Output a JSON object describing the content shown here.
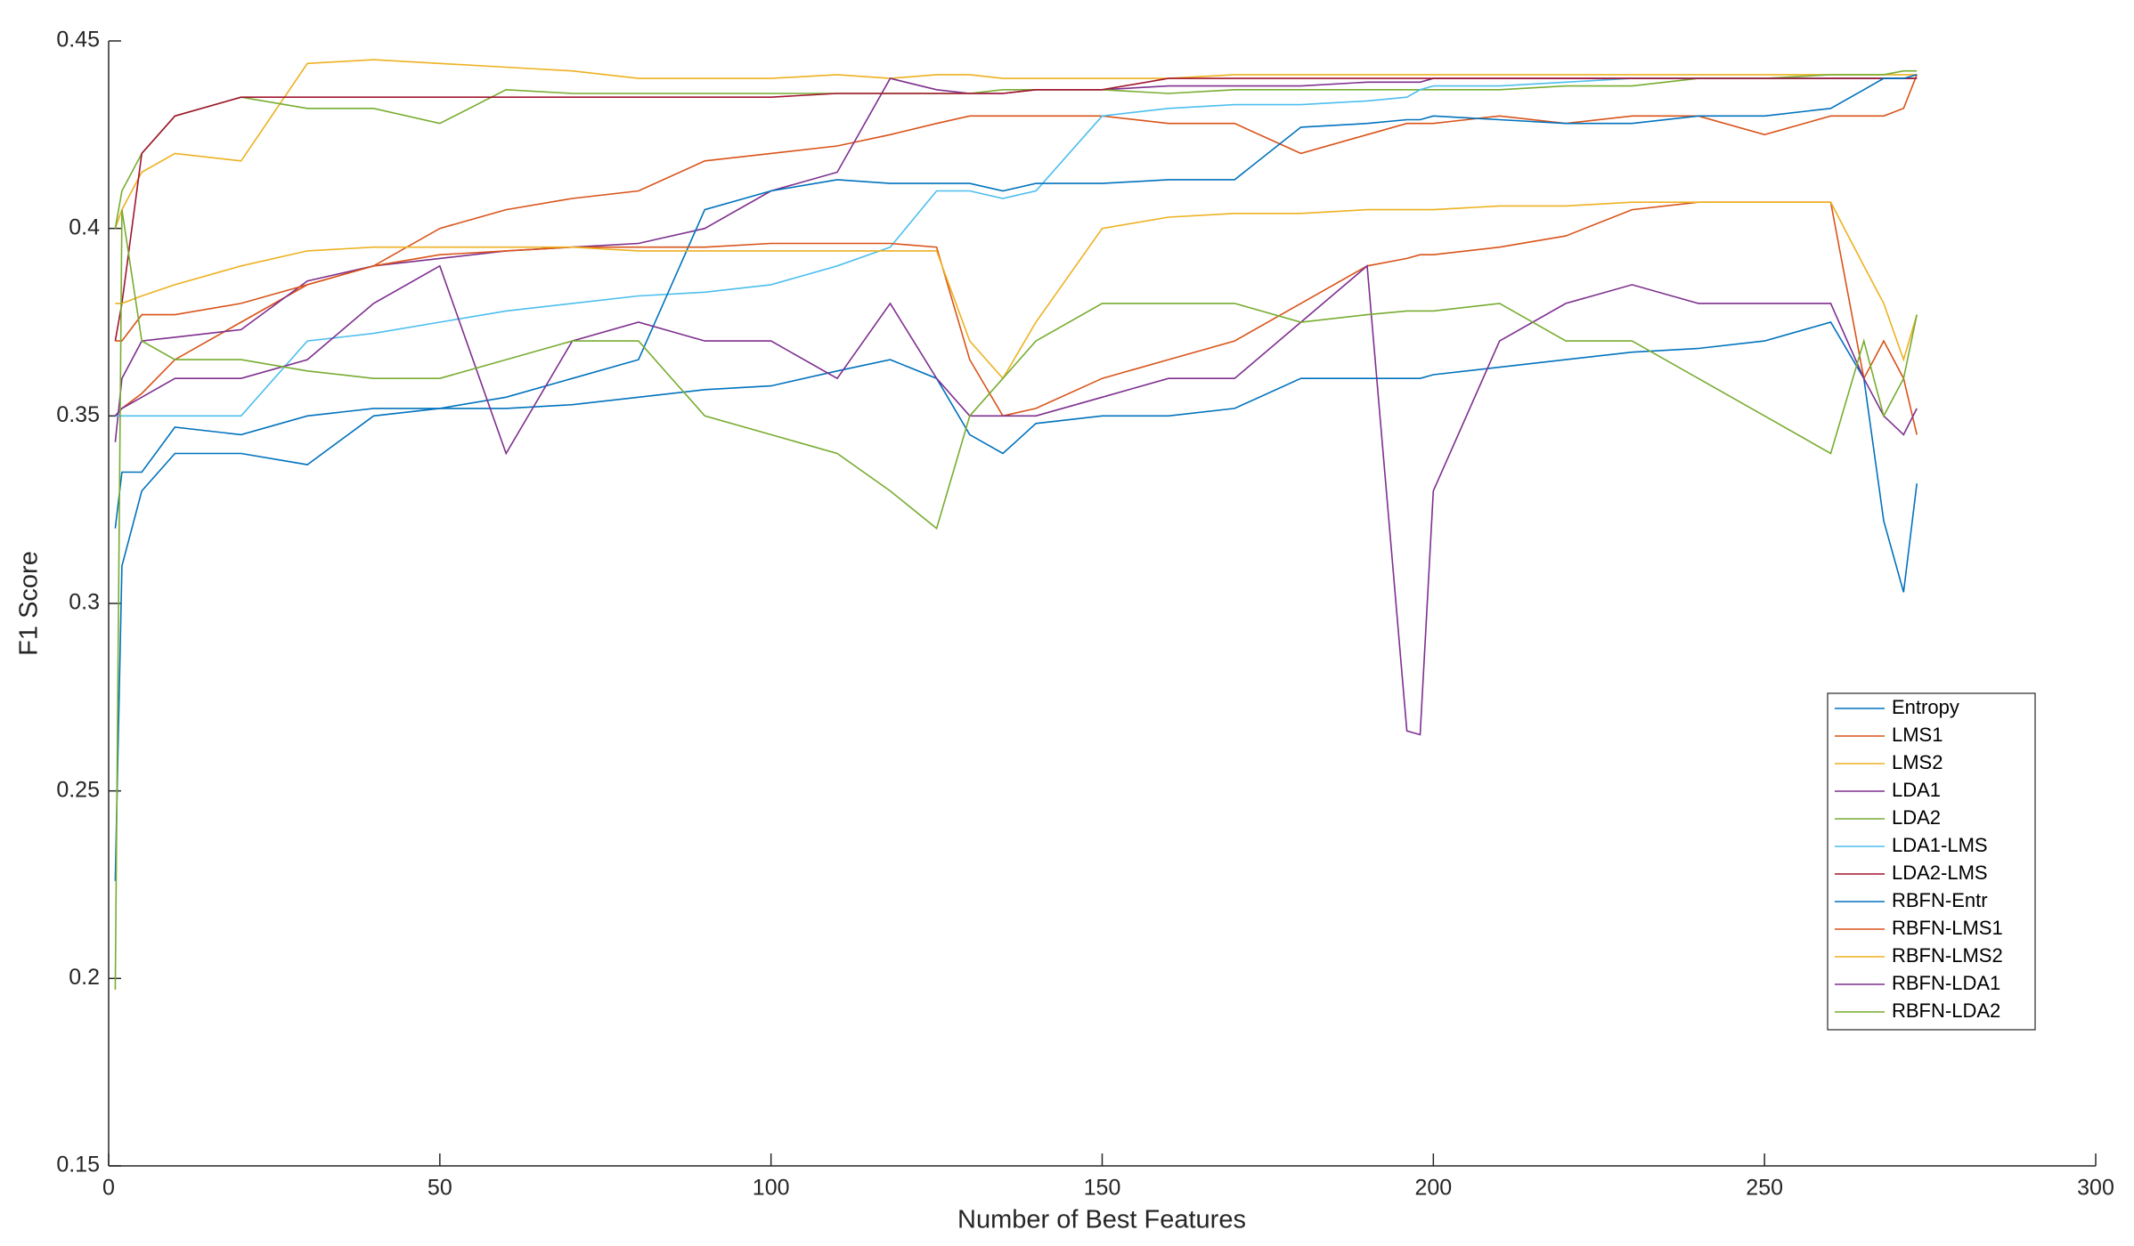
{
  "chart_data": {
    "type": "line",
    "xlabel": "Number of Best Features",
    "ylabel": "F1 Score",
    "xlim": [
      0,
      300
    ],
    "xticks": [
      0,
      50,
      100,
      150,
      200,
      250,
      300
    ],
    "ylim": [
      0.15,
      0.45
    ],
    "yticks": [
      0.15,
      0.2,
      0.25,
      0.3,
      0.35,
      0.4,
      0.45
    ],
    "legend": "right",
    "x": [
      1,
      2,
      5,
      10,
      20,
      30,
      40,
      50,
      60,
      70,
      80,
      90,
      100,
      110,
      118,
      125,
      130,
      135,
      140,
      150,
      160,
      170,
      180,
      190,
      196,
      198,
      200,
      210,
      220,
      230,
      240,
      250,
      260,
      265,
      268,
      271,
      273
    ],
    "series": [
      {
        "name": "Entropy",
        "color": "#0072BD",
        "values": [
          0.226,
          0.31,
          0.33,
          0.34,
          0.34,
          0.337,
          0.35,
          0.352,
          0.352,
          0.353,
          0.355,
          0.357,
          0.358,
          0.362,
          0.365,
          0.36,
          0.345,
          0.34,
          0.348,
          0.35,
          0.35,
          0.352,
          0.36,
          0.36,
          0.36,
          0.36,
          0.361,
          0.363,
          0.365,
          0.367,
          0.368,
          0.37,
          0.375,
          0.36,
          0.322,
          0.303,
          0.332
        ]
      },
      {
        "name": "LMS1",
        "color": "#D95319",
        "values": [
          0.35,
          0.352,
          0.356,
          0.365,
          0.375,
          0.385,
          0.39,
          0.4,
          0.405,
          0.408,
          0.41,
          0.418,
          0.42,
          0.422,
          0.425,
          0.428,
          0.43,
          0.43,
          0.43,
          0.43,
          0.428,
          0.428,
          0.42,
          0.425,
          0.428,
          0.428,
          0.428,
          0.43,
          0.428,
          0.43,
          0.43,
          0.425,
          0.43,
          0.43,
          0.43,
          0.432,
          0.441
        ]
      },
      {
        "name": "LMS2",
        "color": "#EDB120",
        "values": [
          0.4,
          0.405,
          0.415,
          0.42,
          0.418,
          0.444,
          0.445,
          0.444,
          0.443,
          0.442,
          0.44,
          0.44,
          0.44,
          0.441,
          0.44,
          0.441,
          0.441,
          0.44,
          0.44,
          0.44,
          0.44,
          0.441,
          0.441,
          0.441,
          0.441,
          0.441,
          0.441,
          0.441,
          0.441,
          0.441,
          0.441,
          0.441,
          0.441,
          0.441,
          0.441,
          0.441,
          0.441
        ]
      },
      {
        "name": "LDA1",
        "color": "#7E2F8E",
        "values": [
          0.343,
          0.36,
          0.37,
          0.371,
          0.373,
          0.386,
          0.39,
          0.392,
          0.394,
          0.395,
          0.396,
          0.4,
          0.41,
          0.415,
          0.44,
          0.437,
          0.436,
          0.436,
          0.437,
          0.437,
          0.438,
          0.438,
          0.438,
          0.439,
          0.439,
          0.439,
          0.44,
          0.44,
          0.44,
          0.44,
          0.44,
          0.44,
          0.44,
          0.44,
          0.44,
          0.44,
          0.44
        ]
      },
      {
        "name": "LDA2",
        "color": "#77AC30",
        "values": [
          0.4,
          0.41,
          0.42,
          0.43,
          0.435,
          0.432,
          0.432,
          0.428,
          0.437,
          0.436,
          0.436,
          0.436,
          0.436,
          0.436,
          0.436,
          0.436,
          0.436,
          0.437,
          0.437,
          0.437,
          0.436,
          0.437,
          0.437,
          0.437,
          0.437,
          0.437,
          0.437,
          0.437,
          0.438,
          0.438,
          0.44,
          0.44,
          0.441,
          0.441,
          0.441,
          0.442,
          0.442
        ]
      },
      {
        "name": "LDA1-LMS",
        "color": "#4DBEEE",
        "values": [
          0.35,
          0.35,
          0.35,
          0.35,
          0.35,
          0.37,
          0.372,
          0.375,
          0.378,
          0.38,
          0.382,
          0.383,
          0.385,
          0.39,
          0.395,
          0.41,
          0.41,
          0.408,
          0.41,
          0.43,
          0.432,
          0.433,
          0.433,
          0.434,
          0.435,
          0.437,
          0.438,
          0.438,
          0.439,
          0.44,
          0.44,
          0.44,
          0.44,
          0.44,
          0.44,
          0.44,
          0.44
        ]
      },
      {
        "name": "LDA2-LMS",
        "color": "#A2142F",
        "values": [
          0.37,
          0.38,
          0.42,
          0.43,
          0.435,
          0.435,
          0.435,
          0.435,
          0.435,
          0.435,
          0.435,
          0.435,
          0.435,
          0.436,
          0.436,
          0.436,
          0.436,
          0.436,
          0.437,
          0.437,
          0.44,
          0.44,
          0.44,
          0.44,
          0.44,
          0.44,
          0.44,
          0.44,
          0.44,
          0.44,
          0.44,
          0.44,
          0.44,
          0.44,
          0.44,
          0.44,
          0.44
        ]
      },
      {
        "name": "RBFN-Entr",
        "color": "#0072BD",
        "values": [
          0.32,
          0.335,
          0.335,
          0.347,
          0.345,
          0.35,
          0.352,
          0.352,
          0.355,
          0.36,
          0.365,
          0.405,
          0.41,
          0.413,
          0.412,
          0.412,
          0.412,
          0.41,
          0.412,
          0.412,
          0.413,
          0.413,
          0.427,
          0.428,
          0.429,
          0.429,
          0.43,
          0.429,
          0.428,
          0.428,
          0.43,
          0.43,
          0.432,
          0.437,
          0.44,
          0.44,
          0.441
        ]
      },
      {
        "name": "RBFN-LMS1",
        "color": "#D95319",
        "values": [
          0.37,
          0.37,
          0.377,
          0.377,
          0.38,
          0.385,
          0.39,
          0.393,
          0.394,
          0.395,
          0.395,
          0.395,
          0.396,
          0.396,
          0.396,
          0.395,
          0.365,
          0.35,
          0.352,
          0.36,
          0.365,
          0.37,
          0.38,
          0.39,
          0.392,
          0.393,
          0.393,
          0.395,
          0.398,
          0.405,
          0.407,
          0.407,
          0.407,
          0.36,
          0.37,
          0.36,
          0.345
        ]
      },
      {
        "name": "RBFN-LMS2",
        "color": "#EDB120",
        "values": [
          0.38,
          0.38,
          0.382,
          0.385,
          0.39,
          0.394,
          0.395,
          0.395,
          0.395,
          0.395,
          0.394,
          0.394,
          0.394,
          0.394,
          0.394,
          0.394,
          0.37,
          0.36,
          0.375,
          0.4,
          0.403,
          0.404,
          0.404,
          0.405,
          0.405,
          0.405,
          0.405,
          0.406,
          0.406,
          0.407,
          0.407,
          0.407,
          0.407,
          0.39,
          0.38,
          0.365,
          0.377
        ]
      },
      {
        "name": "RBFN-LDA1",
        "color": "#7E2F8E",
        "values": [
          0.35,
          0.352,
          0.355,
          0.36,
          0.36,
          0.365,
          0.38,
          0.39,
          0.34,
          0.37,
          0.375,
          0.37,
          0.37,
          0.36,
          0.38,
          0.36,
          0.35,
          0.35,
          0.35,
          0.355,
          0.36,
          0.36,
          0.375,
          0.39,
          0.266,
          0.265,
          0.33,
          0.37,
          0.38,
          0.385,
          0.38,
          0.38,
          0.38,
          0.36,
          0.35,
          0.345,
          0.352
        ]
      },
      {
        "name": "RBFN-LDA2",
        "color": "#77AC30",
        "values": [
          0.197,
          0.405,
          0.37,
          0.365,
          0.365,
          0.362,
          0.36,
          0.36,
          0.365,
          0.37,
          0.37,
          0.35,
          0.345,
          0.34,
          0.33,
          0.32,
          0.35,
          0.36,
          0.37,
          0.38,
          0.38,
          0.38,
          0.375,
          0.377,
          0.378,
          0.378,
          0.378,
          0.38,
          0.37,
          0.37,
          0.36,
          0.35,
          0.34,
          0.37,
          0.35,
          0.36,
          0.377
        ]
      }
    ]
  }
}
